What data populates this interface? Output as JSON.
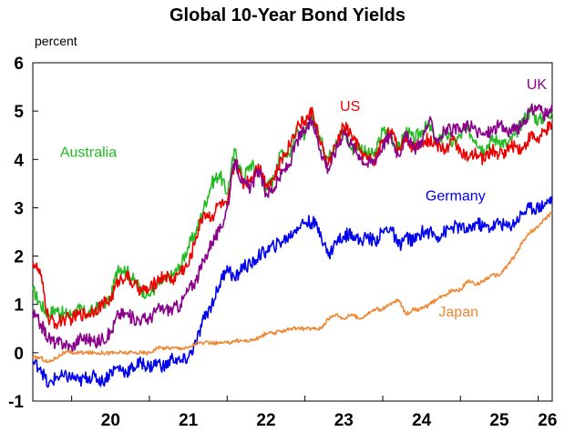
{
  "chart_data": {
    "type": "line",
    "title": "Global 10-Year Bond Yields",
    "ylabel": "percent",
    "xlabel": "",
    "ylim": [
      -1,
      6
    ],
    "yticks": [
      -1,
      0,
      1,
      2,
      3,
      4,
      5,
      6
    ],
    "xlim": [
      2019.5,
      2026.18
    ],
    "xticks": [
      {
        "label": "20",
        "year": 2020
      },
      {
        "label": "21",
        "year": 2021
      },
      {
        "label": "22",
        "year": 2022
      },
      {
        "label": "23",
        "year": 2023
      },
      {
        "label": "24",
        "year": 2024
      },
      {
        "label": "25",
        "year": 2025
      },
      {
        "label": "26",
        "year": 2026
      }
    ],
    "grid": false,
    "legend": "inline labels",
    "series": [
      {
        "name": "Australia",
        "color": "#22bb22",
        "label_at": [
          2019.85,
          4.05
        ],
        "x": [
          2019.5,
          2019.6,
          2019.7,
          2019.8,
          2019.9,
          2020.0,
          2020.1,
          2020.2,
          2020.3,
          2020.4,
          2020.5,
          2020.6,
          2020.7,
          2020.8,
          2020.9,
          2021.0,
          2021.1,
          2021.2,
          2021.3,
          2021.4,
          2021.5,
          2021.6,
          2021.7,
          2021.8,
          2021.9,
          2022.0,
          2022.1,
          2022.2,
          2022.3,
          2022.4,
          2022.5,
          2022.6,
          2022.7,
          2022.8,
          2022.9,
          2023.0,
          2023.1,
          2023.2,
          2023.3,
          2023.4,
          2023.5,
          2023.6,
          2023.7,
          2023.8,
          2023.9,
          2024.0,
          2024.1,
          2024.2,
          2024.3,
          2024.4,
          2024.5,
          2024.6,
          2024.7,
          2024.8,
          2024.9,
          2025.0,
          2025.1,
          2025.2,
          2025.3,
          2025.4,
          2025.5,
          2025.6,
          2025.7,
          2025.8,
          2025.9,
          2026.0,
          2026.1,
          2026.18
        ],
        "values": [
          1.3,
          1.0,
          0.8,
          0.9,
          0.8,
          0.8,
          0.9,
          0.8,
          0.9,
          1.0,
          1.1,
          1.8,
          1.7,
          1.5,
          1.3,
          1.2,
          1.4,
          1.5,
          1.6,
          1.8,
          2.2,
          2.5,
          3.0,
          3.5,
          3.7,
          3.3,
          4.2,
          3.6,
          3.9,
          3.8,
          3.4,
          3.6,
          4.2,
          4.1,
          4.6,
          4.5,
          4.9,
          4.4,
          4.0,
          4.4,
          4.6,
          4.2,
          4.3,
          4.1,
          4.1,
          4.6,
          4.5,
          4.2,
          4.6,
          4.4,
          4.6,
          4.7,
          4.3,
          4.6,
          4.3,
          4.5,
          4.6,
          4.4,
          4.2,
          4.4,
          4.4,
          4.3,
          4.5,
          4.8,
          5.0,
          4.8,
          4.9,
          5.0
        ]
      },
      {
        "name": "US",
        "color": "#ee0000",
        "label_at": [
          2023.45,
          5.0
        ],
        "x": [
          2019.5,
          2019.6,
          2019.7,
          2019.8,
          2019.9,
          2020.0,
          2020.1,
          2020.2,
          2020.3,
          2020.4,
          2020.5,
          2020.6,
          2020.7,
          2020.8,
          2020.9,
          2021.0,
          2021.1,
          2021.2,
          2021.3,
          2021.4,
          2021.5,
          2021.6,
          2021.7,
          2021.8,
          2021.9,
          2022.0,
          2022.1,
          2022.2,
          2022.3,
          2022.4,
          2022.5,
          2022.6,
          2022.7,
          2022.8,
          2022.9,
          2023.0,
          2023.1,
          2023.2,
          2023.3,
          2023.4,
          2023.5,
          2023.6,
          2023.7,
          2023.8,
          2023.9,
          2024.0,
          2024.1,
          2024.2,
          2024.3,
          2024.4,
          2024.5,
          2024.6,
          2024.7,
          2024.8,
          2024.9,
          2025.0,
          2025.1,
          2025.2,
          2025.3,
          2025.4,
          2025.5,
          2025.6,
          2025.7,
          2025.8,
          2025.9,
          2026.0,
          2026.1,
          2026.18
        ],
        "values": [
          1.9,
          1.6,
          0.7,
          0.6,
          0.7,
          0.7,
          0.8,
          0.8,
          0.9,
          1.0,
          1.1,
          1.5,
          1.6,
          1.4,
          1.3,
          1.3,
          1.5,
          1.6,
          1.5,
          1.7,
          1.8,
          2.4,
          2.9,
          2.8,
          3.1,
          3.0,
          4.0,
          3.5,
          3.6,
          3.9,
          3.5,
          3.6,
          4.0,
          4.3,
          4.7,
          4.8,
          5.0,
          4.3,
          3.9,
          4.3,
          4.7,
          4.5,
          4.2,
          4.0,
          4.0,
          4.4,
          4.6,
          4.2,
          4.5,
          4.2,
          4.4,
          4.4,
          4.3,
          4.2,
          4.4,
          4.2,
          4.0,
          4.1,
          4.0,
          4.2,
          4.1,
          4.2,
          4.3,
          4.2,
          4.5,
          4.4,
          4.6,
          4.7
        ]
      },
      {
        "name": "UK",
        "color": "#8b008b",
        "label_at": [
          2025.85,
          5.45
        ],
        "x": [
          2019.5,
          2019.6,
          2019.7,
          2019.8,
          2019.9,
          2020.0,
          2020.1,
          2020.2,
          2020.3,
          2020.4,
          2020.5,
          2020.6,
          2020.7,
          2020.8,
          2020.9,
          2021.0,
          2021.1,
          2021.2,
          2021.3,
          2021.4,
          2021.5,
          2021.6,
          2021.7,
          2021.8,
          2021.9,
          2022.0,
          2022.1,
          2022.2,
          2022.3,
          2022.4,
          2022.5,
          2022.6,
          2022.7,
          2022.8,
          2022.9,
          2023.0,
          2023.1,
          2023.2,
          2023.3,
          2023.4,
          2023.5,
          2023.6,
          2023.7,
          2023.8,
          2023.9,
          2024.0,
          2024.1,
          2024.2,
          2024.3,
          2024.4,
          2024.5,
          2024.6,
          2024.7,
          2024.8,
          2024.9,
          2025.0,
          2025.1,
          2025.2,
          2025.3,
          2025.4,
          2025.5,
          2025.6,
          2025.7,
          2025.8,
          2025.9,
          2026.0,
          2026.1,
          2026.18
        ],
        "values": [
          0.8,
          0.6,
          0.3,
          0.2,
          0.2,
          0.1,
          0.3,
          0.3,
          0.2,
          0.3,
          0.4,
          0.8,
          0.8,
          0.7,
          0.7,
          0.7,
          0.9,
          0.9,
          0.9,
          1.0,
          1.3,
          1.5,
          1.9,
          2.3,
          2.5,
          3.0,
          4.0,
          3.5,
          3.4,
          3.8,
          3.3,
          3.4,
          3.7,
          3.9,
          4.4,
          4.6,
          4.8,
          4.2,
          3.8,
          4.2,
          4.6,
          4.3,
          4.1,
          3.9,
          4.0,
          4.3,
          4.5,
          4.1,
          4.5,
          4.2,
          4.4,
          4.8,
          4.4,
          4.6,
          4.6,
          4.6,
          4.7,
          4.6,
          4.5,
          4.6,
          4.7,
          4.6,
          4.6,
          4.7,
          5.0,
          5.1,
          4.9,
          5.0
        ]
      },
      {
        "name": "Germany",
        "color": "#0000ee",
        "label_at": [
          2024.55,
          3.15
        ],
        "x": [
          2019.5,
          2019.6,
          2019.7,
          2019.8,
          2019.9,
          2020.0,
          2020.1,
          2020.2,
          2020.3,
          2020.4,
          2020.5,
          2020.6,
          2020.7,
          2020.8,
          2020.9,
          2021.0,
          2021.1,
          2021.2,
          2021.3,
          2021.4,
          2021.5,
          2021.6,
          2021.7,
          2021.8,
          2021.9,
          2022.0,
          2022.1,
          2022.2,
          2022.3,
          2022.4,
          2022.5,
          2022.6,
          2022.7,
          2022.8,
          2022.9,
          2023.0,
          2023.1,
          2023.2,
          2023.3,
          2023.4,
          2023.5,
          2023.6,
          2023.7,
          2023.8,
          2023.9,
          2024.0,
          2024.1,
          2024.2,
          2024.3,
          2024.4,
          2024.5,
          2024.6,
          2024.7,
          2024.8,
          2024.9,
          2025.0,
          2025.1,
          2025.2,
          2025.3,
          2025.4,
          2025.5,
          2025.6,
          2025.7,
          2025.8,
          2025.9,
          2026.0,
          2026.1,
          2026.18
        ],
        "values": [
          -0.2,
          -0.3,
          -0.7,
          -0.5,
          -0.5,
          -0.5,
          -0.6,
          -0.5,
          -0.5,
          -0.6,
          -0.4,
          -0.3,
          -0.4,
          -0.3,
          -0.2,
          -0.3,
          -0.2,
          -0.3,
          -0.1,
          -0.2,
          -0.1,
          0.2,
          0.7,
          1.0,
          1.4,
          1.8,
          1.5,
          1.8,
          1.8,
          2.0,
          2.1,
          2.2,
          2.3,
          2.4,
          2.6,
          2.7,
          2.7,
          2.5,
          2.0,
          2.3,
          2.4,
          2.5,
          2.3,
          2.4,
          2.3,
          2.5,
          2.6,
          2.2,
          2.4,
          2.3,
          2.5,
          2.5,
          2.4,
          2.5,
          2.6,
          2.6,
          2.5,
          2.7,
          2.6,
          2.6,
          2.7,
          2.6,
          2.7,
          2.9,
          3.0,
          3.0,
          3.1,
          3.2
        ]
      },
      {
        "name": "Japan",
        "color": "#ee8833",
        "label_at": [
          2024.72,
          0.75
        ],
        "x": [
          2019.5,
          2019.6,
          2019.7,
          2019.8,
          2019.9,
          2020.0,
          2020.1,
          2020.2,
          2020.3,
          2020.4,
          2020.5,
          2020.6,
          2020.7,
          2020.8,
          2020.9,
          2021.0,
          2021.1,
          2021.2,
          2021.3,
          2021.4,
          2021.5,
          2021.6,
          2021.7,
          2021.8,
          2021.9,
          2022.0,
          2022.1,
          2022.2,
          2022.3,
          2022.4,
          2022.5,
          2022.6,
          2022.7,
          2022.8,
          2022.9,
          2023.0,
          2023.1,
          2023.2,
          2023.3,
          2023.4,
          2023.5,
          2023.6,
          2023.7,
          2023.8,
          2023.9,
          2024.0,
          2024.1,
          2024.2,
          2024.3,
          2024.4,
          2024.5,
          2024.6,
          2024.7,
          2024.8,
          2024.9,
          2025.0,
          2025.1,
          2025.2,
          2025.3,
          2025.4,
          2025.5,
          2025.6,
          2025.7,
          2025.8,
          2025.9,
          2026.0,
          2026.1,
          2026.18
        ],
        "values": [
          -0.1,
          -0.1,
          -0.2,
          -0.1,
          0.0,
          0.0,
          0.0,
          0.0,
          0.0,
          0.0,
          0.0,
          0.0,
          0.0,
          0.0,
          0.0,
          0.0,
          0.1,
          0.1,
          0.1,
          0.1,
          0.1,
          0.2,
          0.2,
          0.2,
          0.2,
          0.2,
          0.25,
          0.25,
          0.25,
          0.3,
          0.4,
          0.4,
          0.45,
          0.5,
          0.5,
          0.5,
          0.5,
          0.5,
          0.7,
          0.8,
          0.7,
          0.8,
          0.7,
          0.8,
          0.9,
          0.9,
          1.0,
          1.1,
          0.8,
          0.9,
          0.9,
          1.0,
          1.1,
          1.2,
          1.3,
          1.3,
          1.5,
          1.4,
          1.5,
          1.6,
          1.6,
          1.8,
          2.0,
          2.3,
          2.5,
          2.6,
          2.8,
          2.9
        ]
      }
    ]
  }
}
